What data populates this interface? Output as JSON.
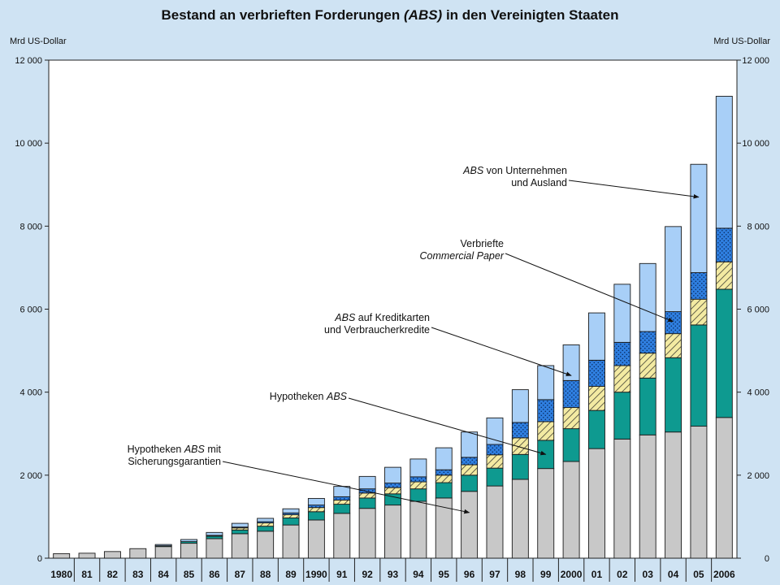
{
  "colors": {
    "background": "#cfe3f3",
    "plot_background": "#ffffff",
    "mortgage_guaranteed": "#c8c8c8",
    "mortgage": "#0e9a90",
    "credit_cards": "#f3eaa2",
    "commercial_paper": "#2f7fe0",
    "corporate_foreign": "#a8cff7"
  },
  "chart_data": {
    "type": "bar",
    "stacked": true,
    "title_parts": [
      {
        "text": "Bestand an verbrieften Forderungen ",
        "italic": false
      },
      {
        "text": "(ABS)",
        "italic": true
      },
      {
        "text": " in den Vereinigten Staaten",
        "italic": false
      }
    ],
    "ylabel_left": "Mrd US-Dollar",
    "ylabel_right": "Mrd US-Dollar",
    "ylim": [
      0,
      12000
    ],
    "yticks": [
      0,
      2000,
      4000,
      6000,
      8000,
      10000,
      12000
    ],
    "ytick_labels": [
      "0",
      "2 000",
      "4 000",
      "6 000",
      "8 000",
      "10 000",
      "12 000"
    ],
    "categories": [
      "1980",
      "81",
      "82",
      "83",
      "84",
      "85",
      "86",
      "87",
      "88",
      "89",
      "1990",
      "91",
      "92",
      "93",
      "94",
      "95",
      "96",
      "97",
      "98",
      "99",
      "2000",
      "01",
      "02",
      "03",
      "04",
      "05",
      "2006"
    ],
    "legend": "none",
    "series": [
      {
        "key": "mortgage_guaranteed",
        "values": [
          110,
          120,
          160,
          230,
          280,
          360,
          470,
          590,
          650,
          800,
          920,
          1080,
          1200,
          1280,
          1370,
          1450,
          1610,
          1740,
          1900,
          2160,
          2330,
          2640,
          2870,
          2970,
          3040,
          3180,
          3390
        ]
      },
      {
        "key": "mortgage",
        "values": [
          0,
          0,
          0,
          0,
          20,
          40,
          60,
          90,
          120,
          170,
          200,
          220,
          250,
          270,
          300,
          370,
          390,
          430,
          600,
          680,
          790,
          920,
          1130,
          1370,
          1790,
          2440,
          3090
        ]
      },
      {
        "key": "credit_cards",
        "values": [
          0,
          0,
          0,
          0,
          0,
          0,
          20,
          50,
          80,
          80,
          100,
          100,
          120,
          150,
          170,
          180,
          250,
          320,
          400,
          450,
          510,
          580,
          640,
          600,
          580,
          620,
          660
        ]
      },
      {
        "key": "commercial_paper",
        "values": [
          0,
          0,
          0,
          0,
          0,
          0,
          0,
          20,
          30,
          40,
          60,
          80,
          100,
          110,
          120,
          130,
          180,
          250,
          370,
          530,
          650,
          630,
          560,
          520,
          530,
          640,
          810
        ]
      },
      {
        "key": "corporate_foreign",
        "values": [
          0,
          0,
          0,
          0,
          30,
          50,
          70,
          90,
          80,
          100,
          160,
          250,
          300,
          380,
          430,
          530,
          610,
          640,
          790,
          820,
          860,
          1140,
          1400,
          1640,
          2050,
          2610,
          3180
        ]
      }
    ],
    "annotations": [
      {
        "key": "corporate_foreign",
        "lines": [
          [
            {
              "text": "ABS",
              "italic": true
            },
            {
              "text": " von Unternehmen",
              "italic": false
            }
          ],
          [
            {
              "text": "und Ausland",
              "italic": false
            }
          ]
        ],
        "target_category": "05",
        "target_value": 8700
      },
      {
        "key": "commercial_paper",
        "lines": [
          [
            {
              "text": "Verbriefte",
              "italic": false
            }
          ],
          [
            {
              "text": "Commercial Paper",
              "italic": true
            }
          ]
        ],
        "target_category": "04",
        "target_value": 5700
      },
      {
        "key": "credit_cards",
        "lines": [
          [
            {
              "text": "ABS",
              "italic": true
            },
            {
              "text": " auf Kreditkarten",
              "italic": false
            }
          ],
          [
            {
              "text": "und Verbraucherkredite",
              "italic": false
            }
          ]
        ],
        "target_category": "2000",
        "target_value": 4400
      },
      {
        "key": "mortgage",
        "lines": [
          [
            {
              "text": "Hypotheken ",
              "italic": false
            },
            {
              "text": "ABS",
              "italic": true
            }
          ]
        ],
        "target_category": "99",
        "target_value": 2500
      },
      {
        "key": "mortgage_guaranteed",
        "lines": [
          [
            {
              "text": "Hypotheken ",
              "italic": false
            },
            {
              "text": "ABS",
              "italic": true
            },
            {
              "text": " mit",
              "italic": false
            }
          ],
          [
            {
              "text": "Sicherungsgarantien",
              "italic": false
            }
          ]
        ],
        "target_category": "96",
        "target_value": 1100
      }
    ]
  }
}
